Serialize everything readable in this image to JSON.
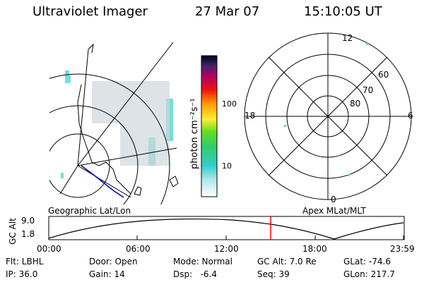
{
  "header": {
    "instrument": "Ultraviolet Imager",
    "date": "27 Mar 07",
    "time": "15:10:05 UT"
  },
  "colorbar": {
    "unit_label": "photon cm⁻²s⁻¹",
    "tick_labels": [
      "100",
      "10"
    ]
  },
  "maps": {
    "left_caption": "Geographic Lat/Lon",
    "right_caption": "Apex MLat/MLT",
    "polar_lat_labels": [
      "80",
      "70",
      "60"
    ],
    "polar_mlt_labels": [
      "12",
      "18",
      "6",
      "0"
    ]
  },
  "timeline": {
    "ylabel": "GC Alt",
    "y_ticks": [
      "9.0",
      "1.8"
    ],
    "x_ticks": [
      "00:00",
      "06:00",
      "12:00",
      "18:00",
      "23:59"
    ],
    "marker_time": "15:10"
  },
  "status": {
    "flt": "Flt: LBHL",
    "ip": "IP: 36.0",
    "door": "Door: Open",
    "gain": "Gain: 14",
    "mode": "Mode: Normal",
    "dsp": "Dsp:   -6.4",
    "gc_alt": "GC Alt: 7.0 Re",
    "seq": "Seq: 39",
    "glat": "GLat: -74.6",
    "glon": "GLon: 217.7"
  },
  "colors": {
    "marker": "#ff0000",
    "coast": "#0000aa",
    "emission": "#5fd8d8"
  }
}
